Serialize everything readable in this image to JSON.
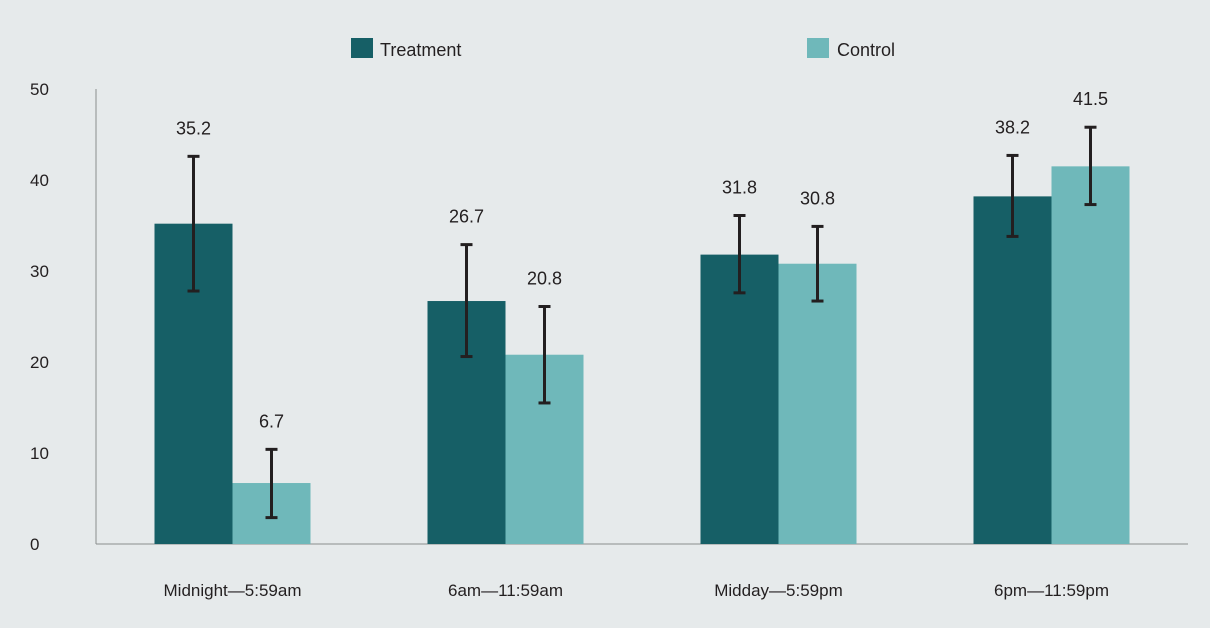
{
  "chart_data": {
    "type": "bar",
    "title": "",
    "xlabel": "",
    "ylabel": "",
    "ylim": [
      0,
      50
    ],
    "yticks": [
      0,
      10,
      20,
      30,
      40,
      50
    ],
    "grid": false,
    "legend_position": "top",
    "categories": [
      "Midnight—5:59am",
      "6am—11:59am",
      "Midday—5:59pm",
      "6pm—11:59pm"
    ],
    "series": [
      {
        "name": "Treatment",
        "color": "#165f66",
        "values": [
          35.2,
          26.7,
          31.8,
          38.2
        ],
        "value_labels": [
          "35.2",
          "26.7",
          "31.8",
          "38.2"
        ],
        "error_low": [
          27.8,
          20.6,
          27.6,
          33.8
        ],
        "error_high": [
          42.6,
          32.9,
          36.1,
          42.7
        ]
      },
      {
        "name": "Control",
        "color": "#6fb8ba",
        "values": [
          6.7,
          20.8,
          30.8,
          41.5
        ],
        "value_labels": [
          "6.7",
          "20.8",
          "30.8",
          "41.5"
        ],
        "error_low": [
          2.9,
          15.5,
          26.7,
          37.3
        ],
        "error_high": [
          10.4,
          26.1,
          34.9,
          45.8
        ]
      }
    ]
  }
}
